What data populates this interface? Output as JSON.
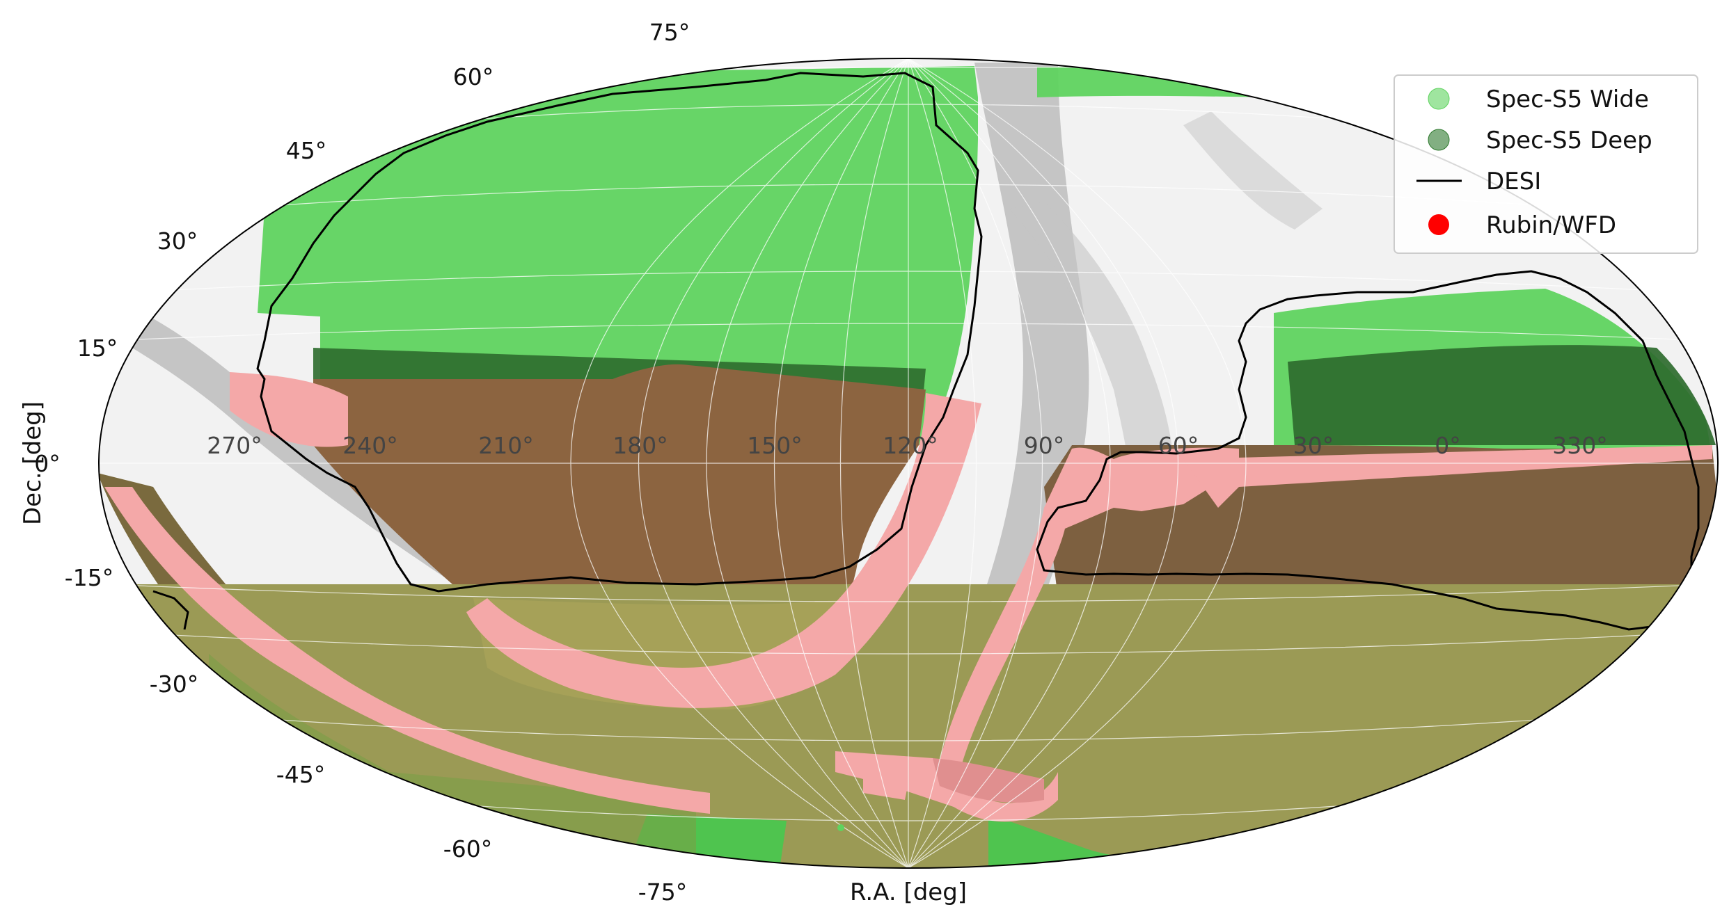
{
  "xlabel": "R.A. [deg]",
  "ylabel": "Dec. [deg]",
  "projection": "aitoff",
  "dec_ticks": [
    "75°",
    "60°",
    "45°",
    "30°",
    "15°",
    "0°",
    "-15°",
    "-30°",
    "-45°",
    "-60°",
    "-75°"
  ],
  "ra_ticks": [
    "270°",
    "240°",
    "210°",
    "180°",
    "150°",
    "120°",
    "90°",
    "60°",
    "30°",
    "0°",
    "330°"
  ],
  "legend": {
    "placement": "top-right",
    "entries": [
      {
        "label": "Spec-S5 Wide",
        "marker": "circle",
        "color": "#5fd35f"
      },
      {
        "label": "Spec-S5 Deep",
        "marker": "circle",
        "color": "#2f7a2f"
      },
      {
        "label": "DESI",
        "marker": "line",
        "color": "#000000"
      },
      {
        "label": "Rubin/WFD",
        "marker": "circle",
        "color": "#ff0000"
      }
    ]
  },
  "colors": {
    "wide": "#5fd35f",
    "deep": "#2e6b2e",
    "rubin": "#f4a8a8",
    "overlap": "#8c6440",
    "overlap_south": "#9b9a55",
    "desi": "#000000",
    "background_dust": "#bdbdbd"
  },
  "grid": true
}
